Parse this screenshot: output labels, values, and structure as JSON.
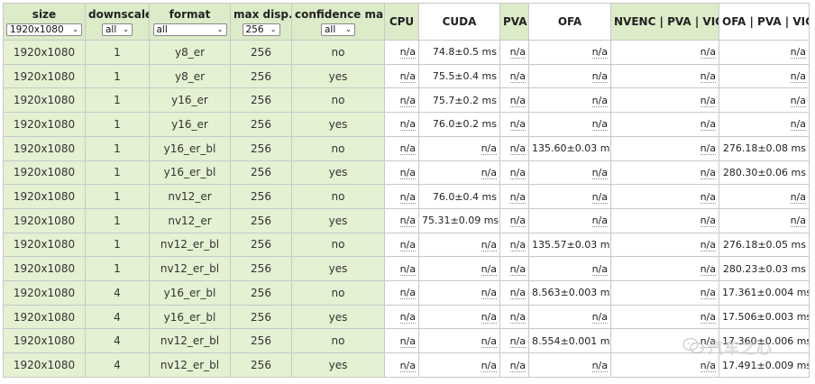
{
  "columns": {
    "size": "size",
    "downscale": "downscale",
    "format": "format",
    "max_disp": "max disp.",
    "confidence_map": "confidence map",
    "cpu": "CPU",
    "cuda": "CUDA",
    "pva": "PVA",
    "ofa": "OFA",
    "nvenc_pva_vic": "NVENC | PVA | VIC",
    "ofa_pva_vic": "OFA | PVA | VIC"
  },
  "filters": {
    "size": "1920x1080",
    "downscale": "all",
    "format": "all",
    "max_disp": "256",
    "confidence_map": "all"
  },
  "rows": [
    {
      "size": "1920x1080",
      "downscale": "1",
      "format": "y8_er",
      "max_disp": "256",
      "conf": "no",
      "cpu": "n/a",
      "cuda": "74.8±0.5 ms",
      "pva": "n/a",
      "ofa": "n/a",
      "nvenc": "n/a",
      "ofapv": "n/a"
    },
    {
      "size": "1920x1080",
      "downscale": "1",
      "format": "y8_er",
      "max_disp": "256",
      "conf": "yes",
      "cpu": "n/a",
      "cuda": "75.5±0.4 ms",
      "pva": "n/a",
      "ofa": "n/a",
      "nvenc": "n/a",
      "ofapv": "n/a"
    },
    {
      "size": "1920x1080",
      "downscale": "1",
      "format": "y16_er",
      "max_disp": "256",
      "conf": "no",
      "cpu": "n/a",
      "cuda": "75.7±0.2 ms",
      "pva": "n/a",
      "ofa": "n/a",
      "nvenc": "n/a",
      "ofapv": "n/a"
    },
    {
      "size": "1920x1080",
      "downscale": "1",
      "format": "y16_er",
      "max_disp": "256",
      "conf": "yes",
      "cpu": "n/a",
      "cuda": "76.0±0.2 ms",
      "pva": "n/a",
      "ofa": "n/a",
      "nvenc": "n/a",
      "ofapv": "n/a"
    },
    {
      "size": "1920x1080",
      "downscale": "1",
      "format": "y16_er_bl",
      "max_disp": "256",
      "conf": "no",
      "cpu": "n/a",
      "cuda": "n/a",
      "pva": "n/a",
      "ofa": "135.60±0.03 ms",
      "nvenc": "n/a",
      "ofapv": "276.18±0.08 ms"
    },
    {
      "size": "1920x1080",
      "downscale": "1",
      "format": "y16_er_bl",
      "max_disp": "256",
      "conf": "yes",
      "cpu": "n/a",
      "cuda": "n/a",
      "pva": "n/a",
      "ofa": "n/a",
      "nvenc": "n/a",
      "ofapv": "280.30±0.06 ms"
    },
    {
      "size": "1920x1080",
      "downscale": "1",
      "format": "nv12_er",
      "max_disp": "256",
      "conf": "no",
      "cpu": "n/a",
      "cuda": "76.0±0.4 ms",
      "pva": "n/a",
      "ofa": "n/a",
      "nvenc": "n/a",
      "ofapv": "n/a"
    },
    {
      "size": "1920x1080",
      "downscale": "1",
      "format": "nv12_er",
      "max_disp": "256",
      "conf": "yes",
      "cpu": "n/a",
      "cuda": "75.31±0.09 ms",
      "pva": "n/a",
      "ofa": "n/a",
      "nvenc": "n/a",
      "ofapv": "n/a"
    },
    {
      "size": "1920x1080",
      "downscale": "1",
      "format": "nv12_er_bl",
      "max_disp": "256",
      "conf": "no",
      "cpu": "n/a",
      "cuda": "n/a",
      "pva": "n/a",
      "ofa": "135.57±0.03 ms",
      "nvenc": "n/a",
      "ofapv": "276.18±0.05 ms"
    },
    {
      "size": "1920x1080",
      "downscale": "1",
      "format": "nv12_er_bl",
      "max_disp": "256",
      "conf": "yes",
      "cpu": "n/a",
      "cuda": "n/a",
      "pva": "n/a",
      "ofa": "n/a",
      "nvenc": "n/a",
      "ofapv": "280.23±0.03 ms"
    },
    {
      "size": "1920x1080",
      "downscale": "4",
      "format": "y16_er_bl",
      "max_disp": "256",
      "conf": "no",
      "cpu": "n/a",
      "cuda": "n/a",
      "pva": "n/a",
      "ofa": "8.563±0.003 ms",
      "nvenc": "n/a",
      "ofapv": "17.361±0.004 ms"
    },
    {
      "size": "1920x1080",
      "downscale": "4",
      "format": "y16_er_bl",
      "max_disp": "256",
      "conf": "yes",
      "cpu": "n/a",
      "cuda": "n/a",
      "pva": "n/a",
      "ofa": "n/a",
      "nvenc": "n/a",
      "ofapv": "17.506±0.003 ms"
    },
    {
      "size": "1920x1080",
      "downscale": "4",
      "format": "nv12_er_bl",
      "max_disp": "256",
      "conf": "no",
      "cpu": "n/a",
      "cuda": "n/a",
      "pva": "n/a",
      "ofa": "8.554±0.001 ms",
      "nvenc": "n/a",
      "ofapv": "17.360±0.006 ms"
    },
    {
      "size": "1920x1080",
      "downscale": "4",
      "format": "nv12_er_bl",
      "max_disp": "256",
      "conf": "yes",
      "cpu": "n/a",
      "cuda": "n/a",
      "pva": "n/a",
      "ofa": "n/a",
      "nvenc": "n/a",
      "ofapv": "17.491±0.009 ms"
    }
  ],
  "watermark": {
    "text": "汽车之心",
    "icon": "wechat-icon"
  },
  "colors": {
    "header_bg": "#dcebc8",
    "param_bg": "#e4f1d2",
    "border": "#c9c9c9"
  }
}
